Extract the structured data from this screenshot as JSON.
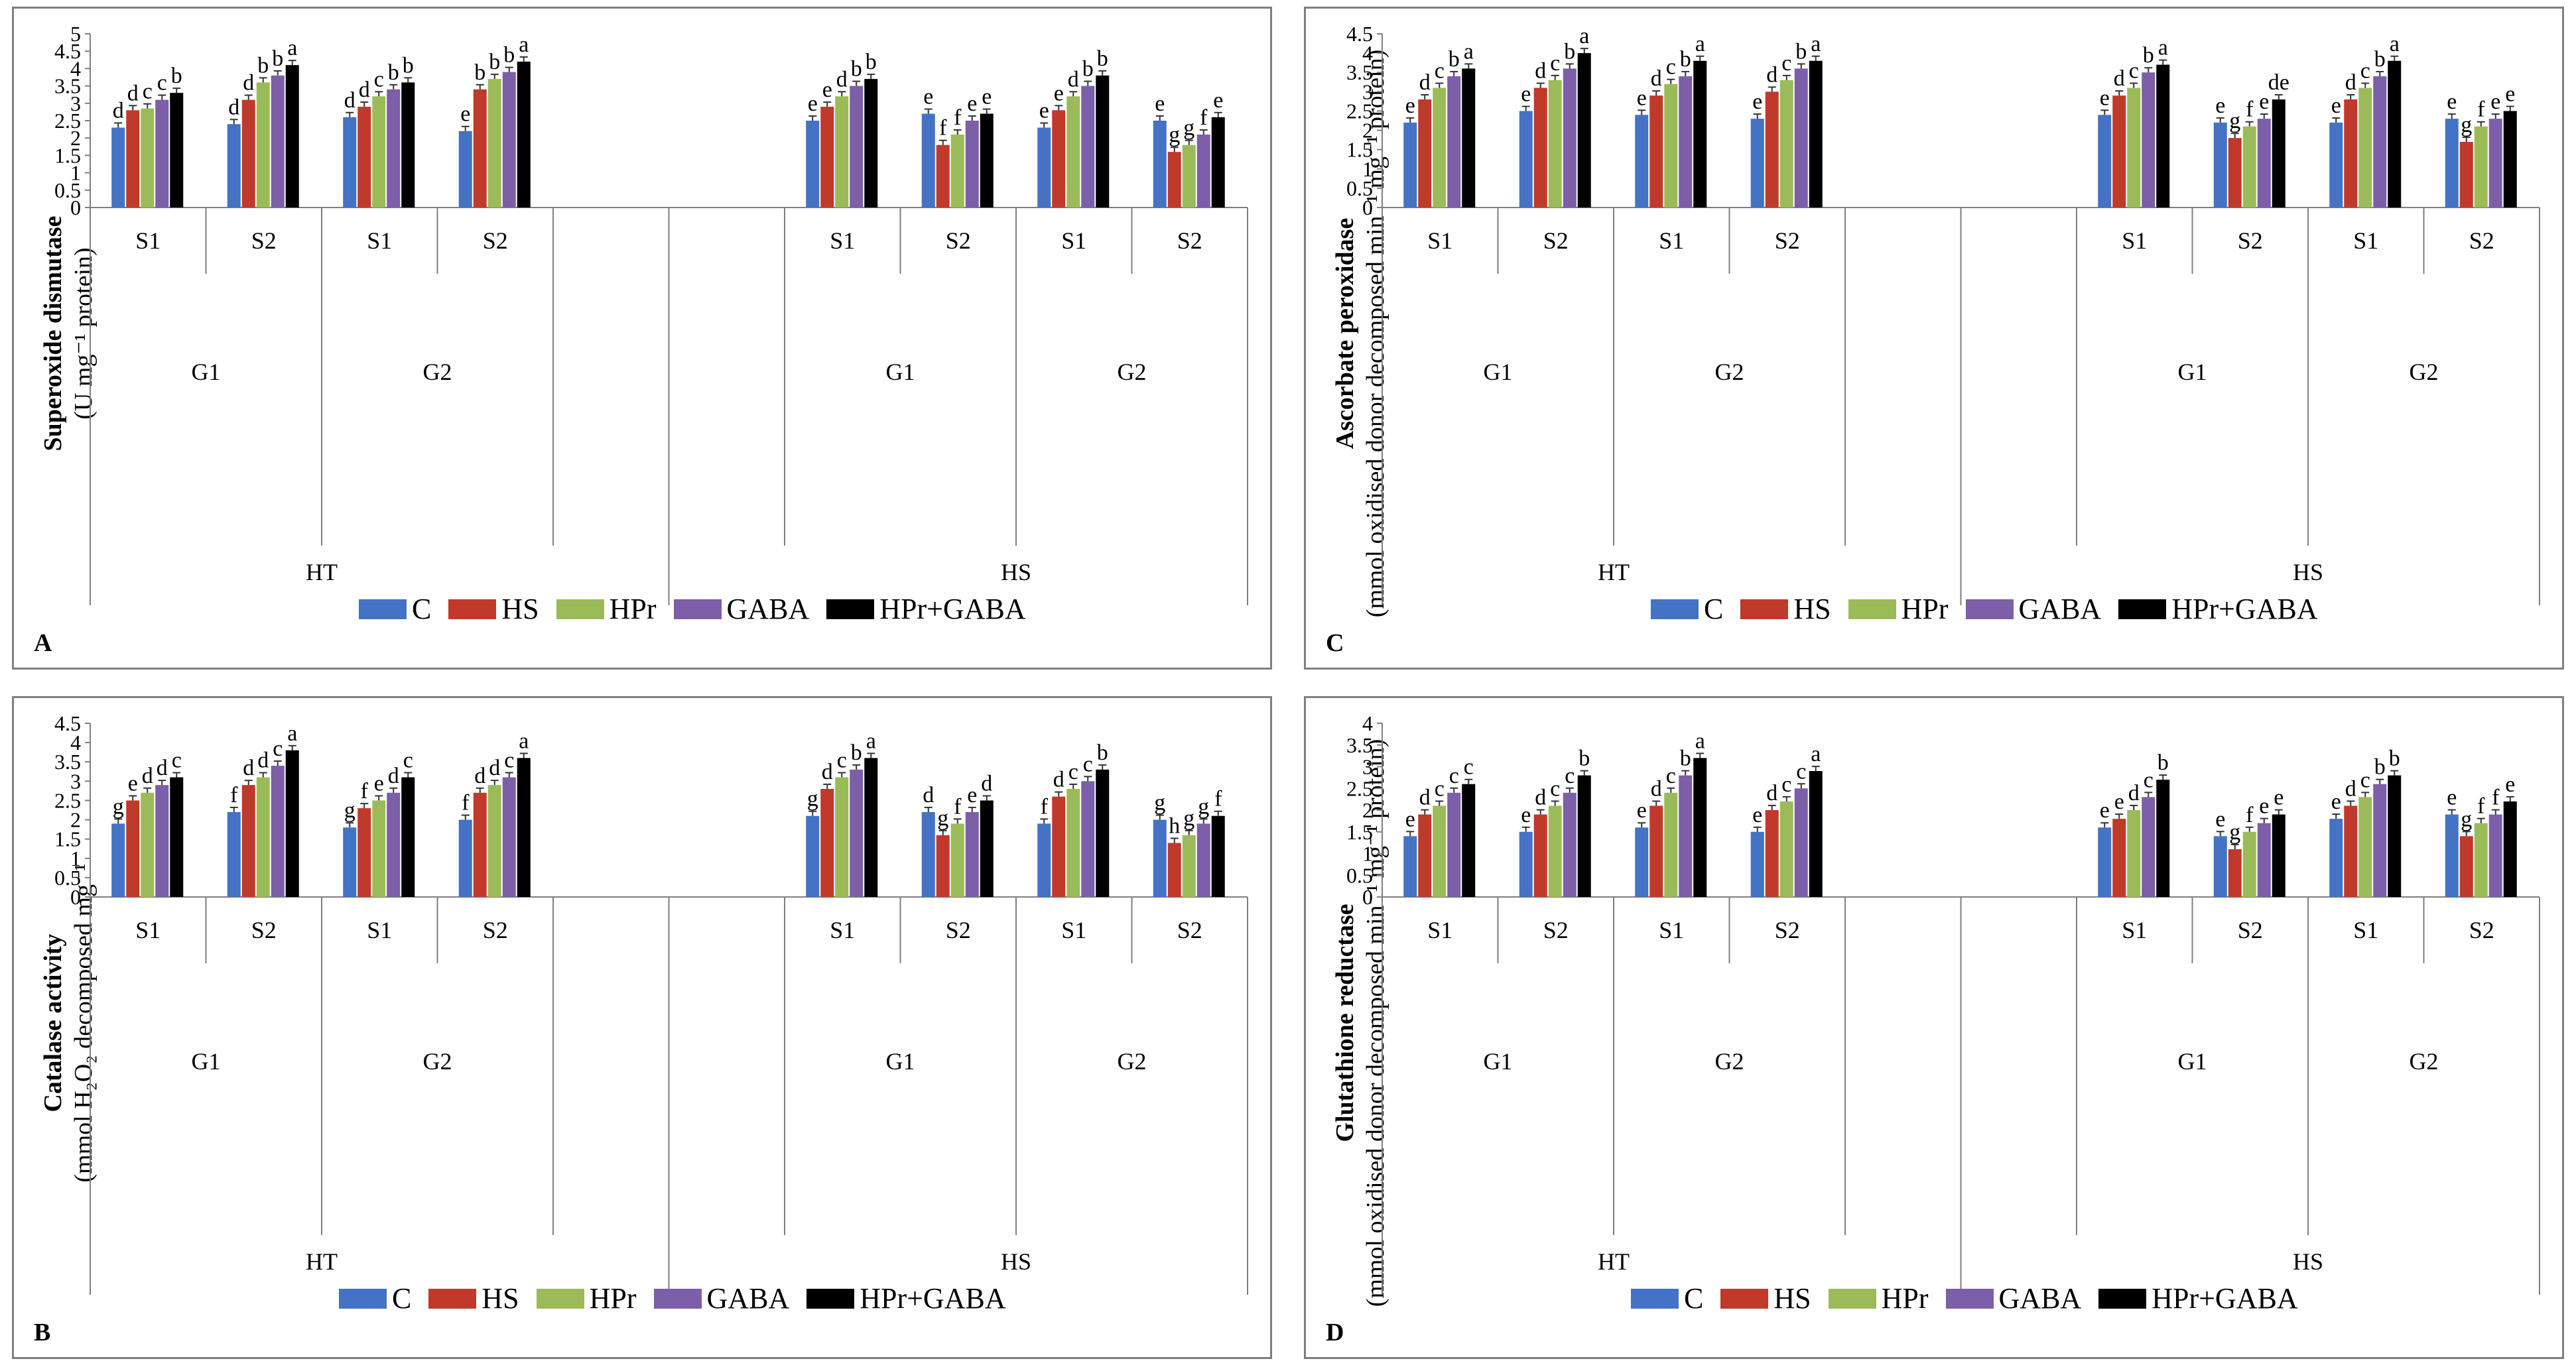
{
  "colors": {
    "C": "#4472c4",
    "HS": "#c0392b",
    "HPr": "#9bbb59",
    "GABA": "#7d5ea8",
    "HPr+GABA": "#000000",
    "axis": "#7f7f7f",
    "error": "#333333"
  },
  "legend": [
    "C",
    "HS",
    "HPr",
    "GABA",
    "HPr+GABA"
  ],
  "panels": [
    {
      "letter": "A",
      "ylabel_line1": "Superoxide dismutase",
      "ylabel_line2": "(U mg⁻¹ protein)"
    },
    {
      "letter": "C",
      "ylabel_line1": "Ascorbate peroxidase",
      "ylabel_line2": "(mmol oxidised donor decomposed min⁻¹ mg⁻¹ protein)"
    },
    {
      "letter": "B",
      "ylabel_line1": "Catalase activity",
      "ylabel_line2": "(mmol H₂O₂ decomposed mg⁻¹"
    },
    {
      "letter": "D",
      "ylabel_line1": "Glutathione reductase",
      "ylabel_line2": "(mmol oxidised donor decomposed min⁻¹ mg⁻¹ protein)"
    }
  ],
  "chart_data": [
    {
      "type": "bar",
      "panel": "A",
      "ylabel": "Superoxide dismutase (U mg-1 protein)",
      "ylim": [
        0,
        5
      ],
      "yticks": [
        "0",
        "0.5",
        "1",
        "1.5",
        "2",
        "2.5",
        "3",
        "3.5",
        "4",
        "4.5",
        "5"
      ],
      "series_names": [
        "C",
        "HS",
        "HPr",
        "GABA",
        "HPr+GABA"
      ],
      "groups": [
        {
          "treatment": "HT",
          "genotype": "G1",
          "stage": "S1",
          "values": [
            2.3,
            2.8,
            2.85,
            3.1,
            3.3
          ],
          "letters": [
            "d",
            "d",
            "c",
            "c",
            "b"
          ]
        },
        {
          "treatment": "HT",
          "genotype": "G1",
          "stage": "S2",
          "values": [
            2.4,
            3.1,
            3.6,
            3.8,
            4.1
          ],
          "letters": [
            "d",
            "d",
            "b",
            "b",
            "a"
          ]
        },
        {
          "treatment": "HT",
          "genotype": "G2",
          "stage": "S1",
          "values": [
            2.6,
            2.9,
            3.2,
            3.4,
            3.6
          ],
          "letters": [
            "d",
            "d",
            "c",
            "b",
            "b"
          ]
        },
        {
          "treatment": "HT",
          "genotype": "G2",
          "stage": "S2",
          "values": [
            2.2,
            3.4,
            3.7,
            3.9,
            4.2
          ],
          "letters": [
            "e",
            "b",
            "b",
            "b",
            "a"
          ]
        },
        {
          "treatment": "HS",
          "genotype": "G1",
          "stage": "S1",
          "values": [
            2.5,
            2.9,
            3.2,
            3.5,
            3.7
          ],
          "letters": [
            "e",
            "e",
            "d",
            "b",
            "b"
          ]
        },
        {
          "treatment": "HS",
          "genotype": "G1",
          "stage": "S2",
          "values": [
            2.7,
            1.8,
            2.1,
            2.5,
            2.7
          ],
          "letters": [
            "e",
            "f",
            "f",
            "e",
            "e"
          ]
        },
        {
          "treatment": "HS",
          "genotype": "G2",
          "stage": "S1",
          "values": [
            2.3,
            2.8,
            3.2,
            3.5,
            3.8
          ],
          "letters": [
            "e",
            "e",
            "d",
            "b",
            "b"
          ]
        },
        {
          "treatment": "HS",
          "genotype": "G2",
          "stage": "S2",
          "values": [
            2.5,
            1.6,
            1.8,
            2.1,
            2.6
          ],
          "letters": [
            "e",
            "g",
            "g",
            "f",
            "e"
          ]
        }
      ]
    },
    {
      "type": "bar",
      "panel": "C",
      "ylabel": "Ascorbate peroxidase (mmol oxidised donor decomposed min-1 mg-1 protein)",
      "ylim": [
        0,
        4.5
      ],
      "yticks": [
        "0",
        "0.5",
        "1",
        "1.5",
        "2",
        "2.5",
        "3",
        "3.5",
        "4",
        "4.5"
      ],
      "series_names": [
        "C",
        "HS",
        "HPr",
        "GABA",
        "HPr+GABA"
      ],
      "groups": [
        {
          "treatment": "HT",
          "genotype": "G1",
          "stage": "S1",
          "values": [
            2.2,
            2.8,
            3.1,
            3.4,
            3.6
          ],
          "letters": [
            "e",
            "d",
            "c",
            "b",
            "a"
          ]
        },
        {
          "treatment": "HT",
          "genotype": "G1",
          "stage": "S2",
          "values": [
            2.5,
            3.1,
            3.3,
            3.6,
            4.0
          ],
          "letters": [
            "e",
            "d",
            "c",
            "b",
            "a"
          ]
        },
        {
          "treatment": "HT",
          "genotype": "G2",
          "stage": "S1",
          "values": [
            2.4,
            2.9,
            3.2,
            3.4,
            3.8
          ],
          "letters": [
            "e",
            "d",
            "c",
            "b",
            "a"
          ]
        },
        {
          "treatment": "HT",
          "genotype": "G2",
          "stage": "S2",
          "values": [
            2.3,
            3.0,
            3.3,
            3.6,
            3.8
          ],
          "letters": [
            "e",
            "d",
            "c",
            "b",
            "a"
          ]
        },
        {
          "treatment": "HS",
          "genotype": "G1",
          "stage": "S1",
          "values": [
            2.4,
            2.9,
            3.1,
            3.5,
            3.7
          ],
          "letters": [
            "e",
            "d",
            "c",
            "b",
            "a"
          ]
        },
        {
          "treatment": "HS",
          "genotype": "G1",
          "stage": "S2",
          "values": [
            2.2,
            1.8,
            2.1,
            2.3,
            2.8
          ],
          "letters": [
            "e",
            "g",
            "f",
            "e",
            "de"
          ]
        },
        {
          "treatment": "HS",
          "genotype": "G2",
          "stage": "S1",
          "values": [
            2.2,
            2.8,
            3.1,
            3.4,
            3.8
          ],
          "letters": [
            "e",
            "d",
            "c",
            "b",
            "a"
          ]
        },
        {
          "treatment": "HS",
          "genotype": "G2",
          "stage": "S2",
          "values": [
            2.3,
            1.7,
            2.1,
            2.3,
            2.5
          ],
          "letters": [
            "e",
            "g",
            "f",
            "e",
            "e"
          ]
        }
      ]
    },
    {
      "type": "bar",
      "panel": "B",
      "ylabel": "Catalase activity (mmol H2O2 decomposed mg-1",
      "ylim": [
        0,
        4.5
      ],
      "yticks": [
        "0",
        "0.5",
        "1",
        "1.5",
        "2",
        "2.5",
        "3",
        "3.5",
        "4",
        "4.5"
      ],
      "series_names": [
        "C",
        "HS",
        "HPr",
        "GABA",
        "HPr+GABA"
      ],
      "groups": [
        {
          "treatment": "HT",
          "genotype": "G1",
          "stage": "S1",
          "values": [
            1.9,
            2.5,
            2.7,
            2.9,
            3.1
          ],
          "letters": [
            "g",
            "e",
            "d",
            "d",
            "c"
          ]
        },
        {
          "treatment": "HT",
          "genotype": "G1",
          "stage": "S2",
          "values": [
            2.2,
            2.9,
            3.1,
            3.4,
            3.8
          ],
          "letters": [
            "f",
            "d",
            "d",
            "c",
            "a"
          ]
        },
        {
          "treatment": "HT",
          "genotype": "G2",
          "stage": "S1",
          "values": [
            1.8,
            2.3,
            2.5,
            2.7,
            3.1
          ],
          "letters": [
            "g",
            "f",
            "e",
            "d",
            "c"
          ]
        },
        {
          "treatment": "HT",
          "genotype": "G2",
          "stage": "S2",
          "values": [
            2.0,
            2.7,
            2.9,
            3.1,
            3.6
          ],
          "letters": [
            "f",
            "d",
            "d",
            "c",
            "a"
          ]
        },
        {
          "treatment": "HS",
          "genotype": "G1",
          "stage": "S1",
          "values": [
            2.1,
            2.8,
            3.1,
            3.3,
            3.6
          ],
          "letters": [
            "g",
            "d",
            "c",
            "b",
            "a"
          ]
        },
        {
          "treatment": "HS",
          "genotype": "G1",
          "stage": "S2",
          "values": [
            2.2,
            1.6,
            1.9,
            2.2,
            2.5
          ],
          "letters": [
            "d",
            "g",
            "f",
            "e",
            "d"
          ]
        },
        {
          "treatment": "HS",
          "genotype": "G2",
          "stage": "S1",
          "values": [
            1.9,
            2.6,
            2.8,
            3.0,
            3.3
          ],
          "letters": [
            "f",
            "d",
            "c",
            "c",
            "b"
          ]
        },
        {
          "treatment": "HS",
          "genotype": "G2",
          "stage": "S2",
          "values": [
            2.0,
            1.4,
            1.6,
            1.9,
            2.1
          ],
          "letters": [
            "g",
            "h",
            "g",
            "g",
            "f"
          ]
        }
      ]
    },
    {
      "type": "bar",
      "panel": "D",
      "ylabel": "Glutathione reductase (mmol oxidised donor decomposed min-1 mg-1 protein)",
      "ylim": [
        0,
        4
      ],
      "yticks": [
        "0",
        "0.5",
        "1",
        "1.5",
        "2",
        "2.5",
        "3",
        "3.5",
        "4"
      ],
      "series_names": [
        "C",
        "HS",
        "HPr",
        "GABA",
        "HPr+GABA"
      ],
      "groups": [
        {
          "treatment": "HT",
          "genotype": "G1",
          "stage": "S1",
          "values": [
            1.4,
            1.9,
            2.1,
            2.4,
            2.6
          ],
          "letters": [
            "e",
            "d",
            "c",
            "c",
            "c"
          ]
        },
        {
          "treatment": "HT",
          "genotype": "G1",
          "stage": "S2",
          "values": [
            1.5,
            1.9,
            2.1,
            2.4,
            2.8
          ],
          "letters": [
            "e",
            "d",
            "c",
            "c",
            "b"
          ]
        },
        {
          "treatment": "HT",
          "genotype": "G2",
          "stage": "S1",
          "values": [
            1.6,
            2.1,
            2.4,
            2.8,
            3.2
          ],
          "letters": [
            "e",
            "d",
            "c",
            "b",
            "a"
          ]
        },
        {
          "treatment": "HT",
          "genotype": "G2",
          "stage": "S2",
          "values": [
            1.5,
            2.0,
            2.2,
            2.5,
            2.9
          ],
          "letters": [
            "e",
            "d",
            "c",
            "c",
            "a"
          ]
        },
        {
          "treatment": "HS",
          "genotype": "G1",
          "stage": "S1",
          "values": [
            1.6,
            1.8,
            2.0,
            2.3,
            2.7
          ],
          "letters": [
            "e",
            "e",
            "d",
            "c",
            "b"
          ]
        },
        {
          "treatment": "HS",
          "genotype": "G1",
          "stage": "S2",
          "values": [
            1.4,
            1.1,
            1.5,
            1.7,
            1.9
          ],
          "letters": [
            "e",
            "g",
            "f",
            "e",
            "e"
          ]
        },
        {
          "treatment": "HS",
          "genotype": "G2",
          "stage": "S1",
          "values": [
            1.8,
            2.1,
            2.3,
            2.6,
            2.8
          ],
          "letters": [
            "e",
            "d",
            "c",
            "b",
            "b"
          ]
        },
        {
          "treatment": "HS",
          "genotype": "G2",
          "stage": "S2",
          "values": [
            1.9,
            1.4,
            1.7,
            1.9,
            2.2
          ],
          "letters": [
            "e",
            "g",
            "f",
            "f",
            "e"
          ]
        }
      ]
    }
  ]
}
